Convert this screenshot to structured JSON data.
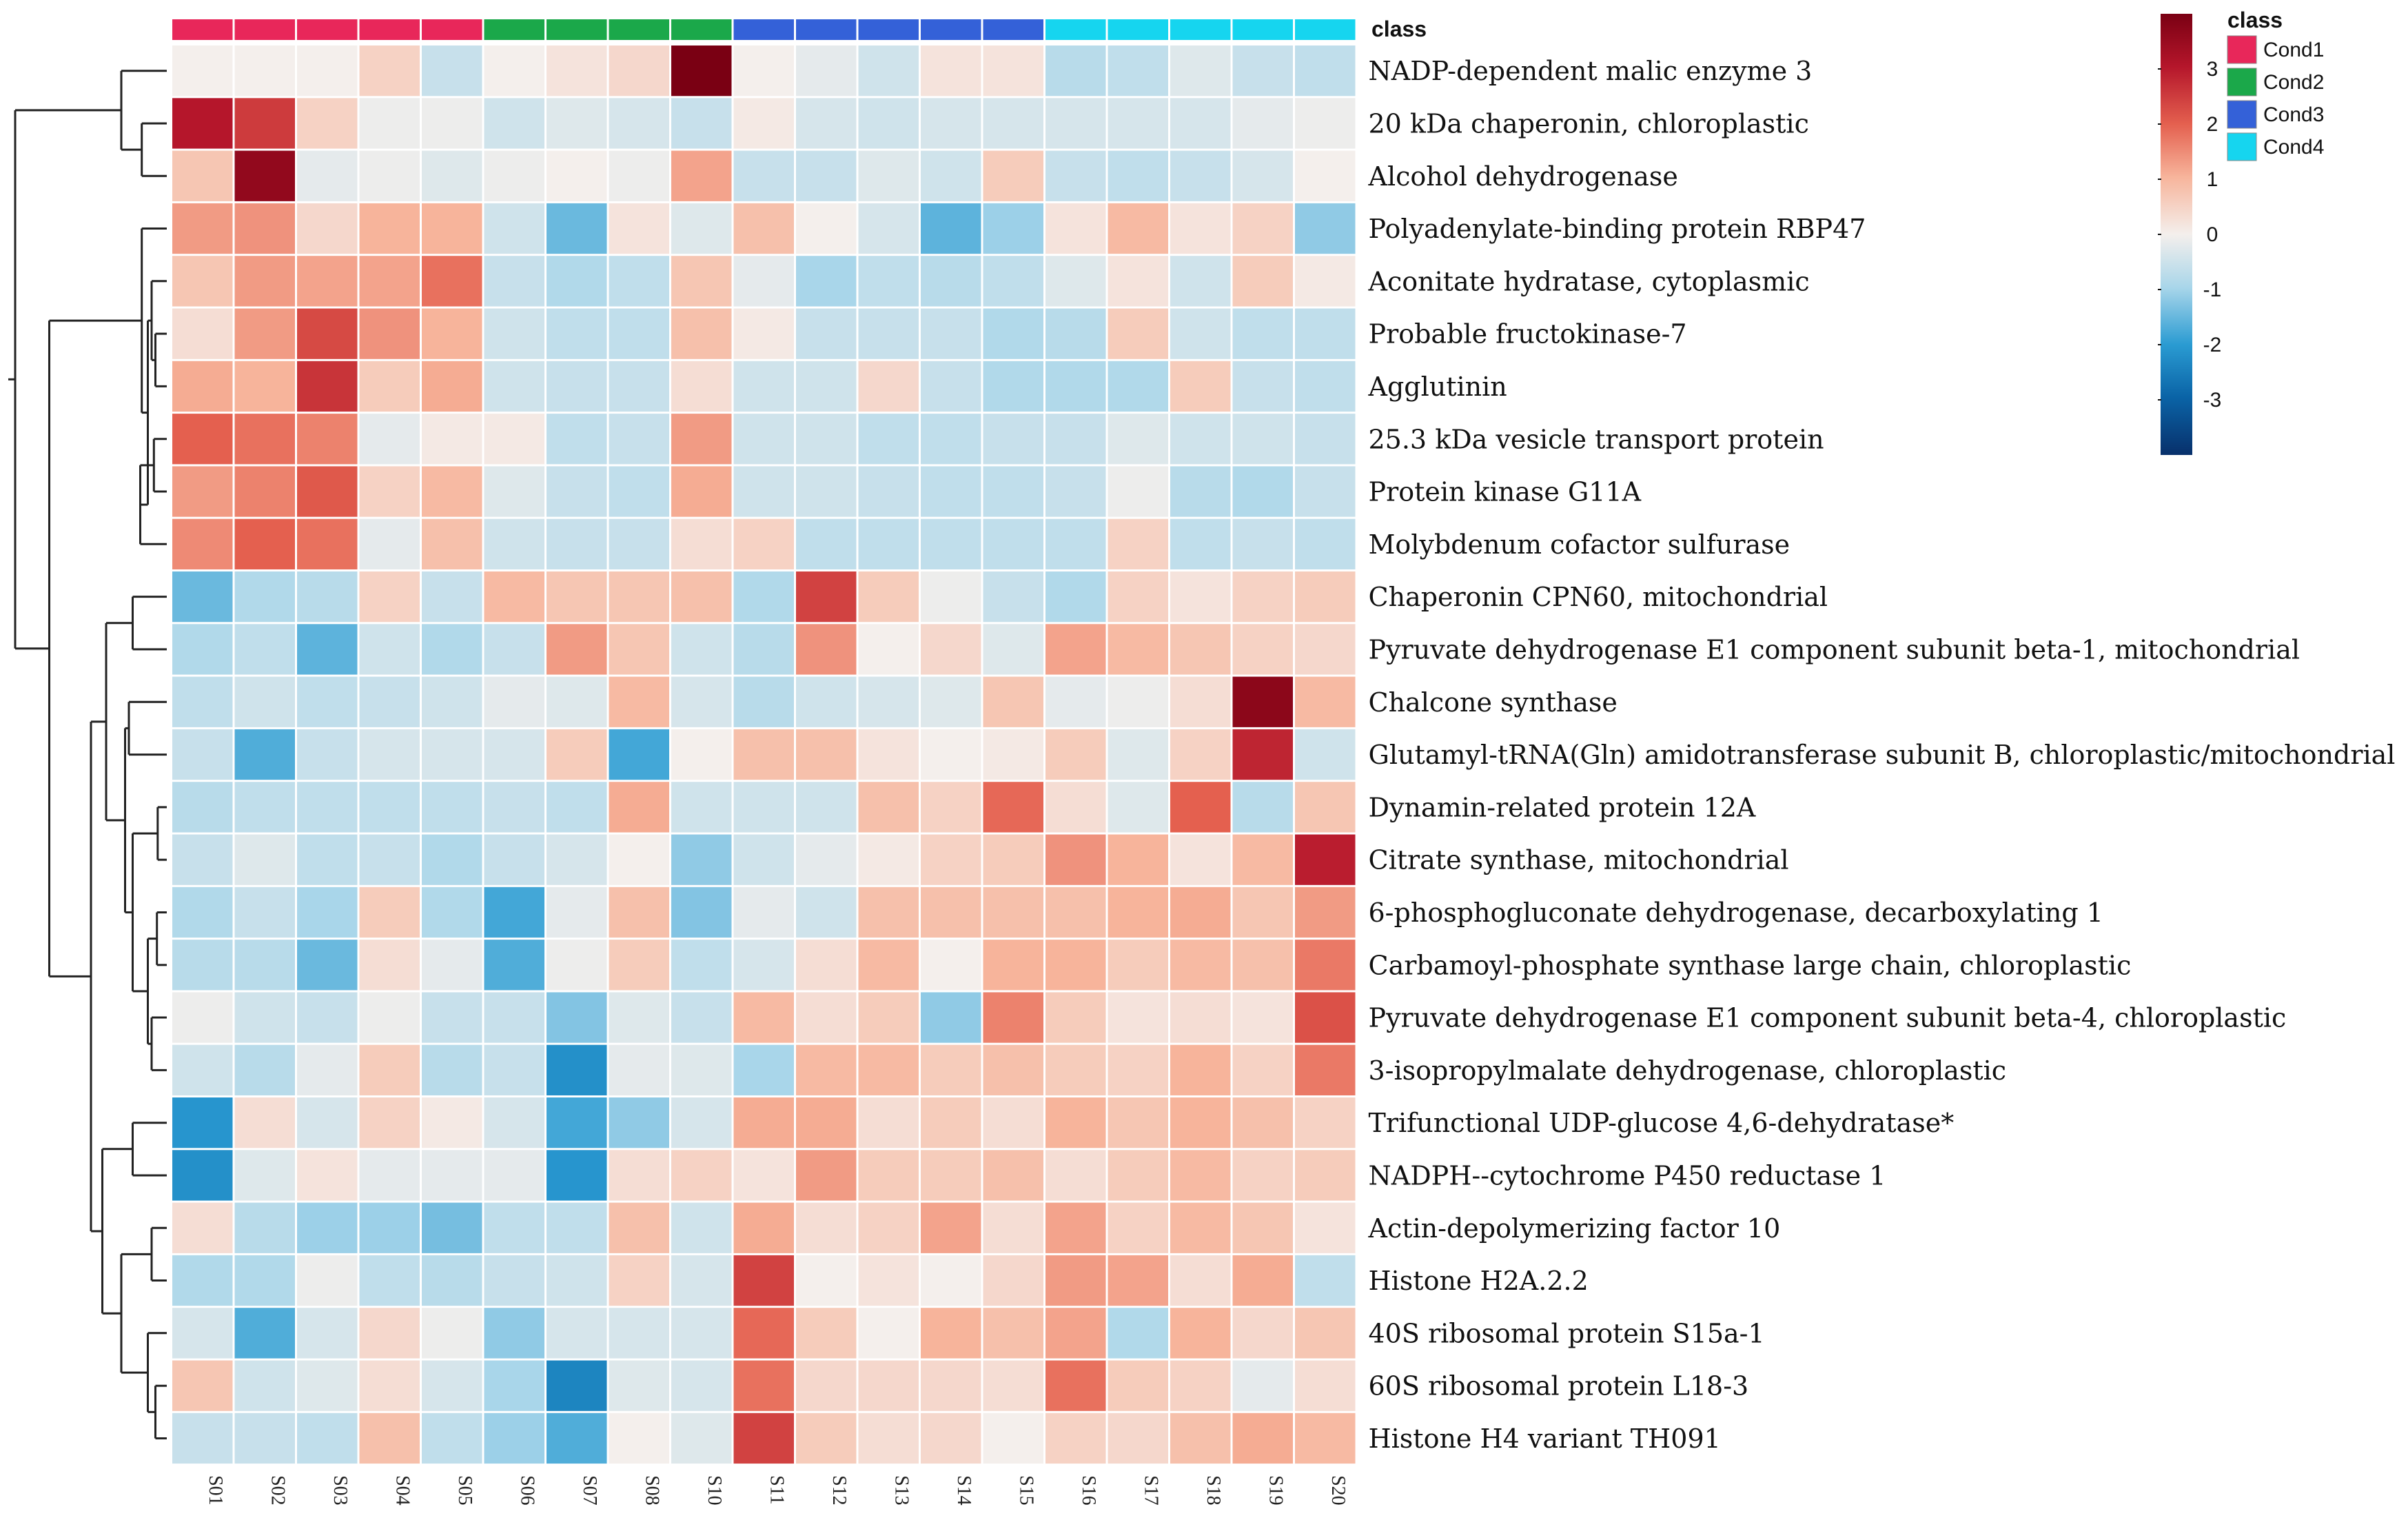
{
  "chart_data": {
    "type": "heatmap",
    "annotation_title": "class",
    "legend_title": "class",
    "color_scale": {
      "min": -4,
      "max": 4,
      "ticks": [
        3,
        2,
        1,
        0,
        -1,
        -2,
        -3
      ],
      "low_color": "#08306b",
      "mid_color": "#f4efec",
      "high_color": "#7a0013"
    },
    "classes": [
      {
        "name": "Cond1",
        "color": "#e8275a"
      },
      {
        "name": "Cond2",
        "color": "#1ba84a"
      },
      {
        "name": "Cond3",
        "color": "#3461d8"
      },
      {
        "name": "Cond4",
        "color": "#16d5ef"
      }
    ],
    "samples": [
      "S01",
      "S02",
      "S03",
      "S04",
      "S05",
      "S06",
      "S07",
      "S08",
      "S10",
      "S11",
      "S12",
      "S13",
      "S14",
      "S15",
      "S16",
      "S17",
      "S18",
      "S19",
      "S20"
    ],
    "sample_class": [
      0,
      0,
      0,
      0,
      0,
      1,
      1,
      1,
      1,
      2,
      2,
      2,
      2,
      2,
      3,
      3,
      3,
      3,
      3
    ],
    "rows": [
      "NADP-dependent malic enzyme 3",
      "20 kDa chaperonin, chloroplastic",
      "Alcohol dehydrogenase",
      "Polyadenylate-binding protein RBP47",
      "Aconitate hydratase, cytoplasmic",
      "Probable fructokinase-7",
      "Agglutinin",
      "25.3 kDa vesicle transport protein",
      "Protein kinase G11A",
      "Molybdenum cofactor sulfurase",
      "Chaperonin CPN60, mitochondrial",
      "Pyruvate dehydrogenase E1 component subunit beta-1, mitochondrial",
      "Chalcone synthase",
      "Glutamyl-tRNA(Gln) amidotransferase subunit B, chloroplastic/mitochondrial",
      "Dynamin-related protein 12A",
      "Citrate synthase, mitochondrial",
      "6-phosphogluconate dehydrogenase, decarboxylating 1",
      "Carbamoyl-phosphate synthase large chain, chloroplastic",
      "Pyruvate dehydrogenase E1 component subunit beta-4, chloroplastic",
      "3-isopropylmalate dehydrogenase, chloroplastic",
      "Trifunctional UDP-glucose 4,6-dehydratase*",
      "NADPH--cytochrome  P450 reductase 1",
      "Actin-depolymerizing factor 10",
      "Histone H2A.2.2",
      "40S ribosomal protein S15a-1",
      "60S ribosomal protein L18-3",
      "Histone H4 variant TH091"
    ],
    "values": [
      [
        0,
        0,
        0,
        0.5,
        -0.6,
        0,
        0.2,
        0.4,
        4,
        0,
        -0.2,
        -0.5,
        0.2,
        0.2,
        -0.8,
        -0.7,
        -0.3,
        -0.6,
        -0.7
      ],
      [
        3,
        2.5,
        0.5,
        -0.1,
        -0.1,
        -0.5,
        -0.3,
        -0.4,
        -0.6,
        0.1,
        -0.4,
        -0.5,
        -0.4,
        -0.4,
        -0.4,
        -0.4,
        -0.4,
        -0.2,
        -0.1
      ],
      [
        0.7,
        3.6,
        -0.2,
        -0.1,
        -0.3,
        -0.1,
        0,
        -0.1,
        1.2,
        -0.6,
        -0.6,
        -0.3,
        -0.5,
        0.6,
        -0.6,
        -0.7,
        -0.6,
        -0.4,
        0
      ],
      [
        1.3,
        1.4,
        0.4,
        1,
        1,
        -0.5,
        -1.5,
        0.2,
        -0.3,
        0.8,
        0,
        -0.4,
        -1.6,
        -1.1,
        0.2,
        0.9,
        0.2,
        0.5,
        -1.2
      ],
      [
        0.7,
        1.3,
        1.2,
        1.2,
        1.8,
        -0.6,
        -0.9,
        -0.7,
        0.7,
        -0.2,
        -1,
        -0.7,
        -0.8,
        -0.7,
        -0.3,
        0.2,
        -0.5,
        0.6,
        0.1
      ],
      [
        0.3,
        1.3,
        2.3,
        1.4,
        1,
        -0.5,
        -0.7,
        -0.7,
        0.8,
        0.1,
        -0.6,
        -0.6,
        -0.6,
        -0.9,
        -0.8,
        0.6,
        -0.5,
        -0.7,
        -0.7
      ],
      [
        1.1,
        1,
        2.6,
        0.6,
        1.1,
        -0.5,
        -0.6,
        -0.6,
        0.3,
        -0.5,
        -0.5,
        0.4,
        -0.6,
        -0.9,
        -0.9,
        -0.9,
        0.6,
        -0.6,
        -0.7
      ],
      [
        2,
        1.8,
        1.6,
        -0.2,
        0.1,
        0.1,
        -0.7,
        -0.6,
        1.3,
        -0.5,
        -0.5,
        -0.7,
        -0.7,
        -0.6,
        -0.6,
        -0.3,
        -0.5,
        -0.5,
        -0.6
      ],
      [
        1.3,
        1.6,
        2.1,
        0.5,
        0.9,
        -0.3,
        -0.6,
        -0.7,
        1.1,
        -0.5,
        -0.5,
        -0.6,
        -0.7,
        -0.7,
        -0.6,
        -0.1,
        -0.8,
        -0.9,
        -0.6
      ],
      [
        1.5,
        2,
        1.8,
        -0.2,
        0.8,
        -0.5,
        -0.6,
        -0.6,
        0.3,
        0.5,
        -0.7,
        -0.7,
        -0.7,
        -0.7,
        -0.7,
        0.5,
        -0.7,
        -0.6,
        -0.7
      ],
      [
        -1.5,
        -0.9,
        -0.8,
        0.5,
        -0.6,
        0.9,
        0.7,
        0.7,
        0.8,
        -0.9,
        2.4,
        0.6,
        -0.1,
        -0.6,
        -0.9,
        0.5,
        0.2,
        0.5,
        0.6
      ],
      [
        -0.9,
        -0.7,
        -1.6,
        -0.5,
        -0.9,
        -0.6,
        1.3,
        0.7,
        -0.5,
        -0.8,
        1.4,
        0,
        0.4,
        -0.3,
        1.2,
        0.9,
        0.7,
        0.5,
        0.4
      ],
      [
        -0.7,
        -0.5,
        -0.7,
        -0.6,
        -0.5,
        -0.2,
        -0.3,
        0.9,
        -0.4,
        -0.8,
        -0.5,
        -0.4,
        -0.3,
        0.7,
        -0.2,
        -0.1,
        0.3,
        3.7,
        0.9
      ],
      [
        -0.6,
        -1.7,
        -0.6,
        -0.4,
        -0.4,
        -0.4,
        0.6,
        -1.8,
        0,
        0.8,
        0.8,
        0.2,
        0,
        0.1,
        0.6,
        -0.3,
        0.5,
        2.8,
        -0.5
      ],
      [
        -0.8,
        -0.7,
        -0.7,
        -0.7,
        -0.7,
        -0.6,
        -0.7,
        1.1,
        -0.5,
        -0.5,
        -0.5,
        0.8,
        0.5,
        1.9,
        0.3,
        -0.3,
        2,
        -0.8,
        0.7
      ],
      [
        -0.6,
        -0.3,
        -0.7,
        -0.6,
        -0.9,
        -0.6,
        -0.4,
        0,
        -1.2,
        -0.5,
        -0.2,
        0.1,
        0.5,
        0.6,
        1.4,
        1,
        0.2,
        0.9,
        2.9
      ],
      [
        -0.9,
        -0.6,
        -1,
        0.6,
        -0.9,
        -1.8,
        -0.2,
        0.8,
        -1.3,
        -0.2,
        -0.5,
        0.8,
        0.8,
        0.8,
        0.8,
        1,
        1.1,
        0.7,
        1.3
      ],
      [
        -0.8,
        -0.8,
        -1.5,
        0.3,
        -0.2,
        -1.7,
        -0.1,
        0.6,
        -0.7,
        -0.4,
        0.3,
        0.9,
        0,
        1,
        1,
        0.6,
        0.9,
        0.8,
        1.7
      ],
      [
        -0.1,
        -0.5,
        -0.6,
        -0.1,
        -0.6,
        -0.6,
        -1.3,
        -0.3,
        -0.6,
        0.9,
        0.3,
        0.6,
        -1.2,
        1.6,
        0.6,
        0.2,
        0.3,
        0.2,
        2.2
      ],
      [
        -0.5,
        -0.8,
        -0.2,
        0.6,
        -0.8,
        -0.6,
        -2.2,
        -0.2,
        -0.3,
        -1,
        0.9,
        0.9,
        0.6,
        0.8,
        0.6,
        0.5,
        1,
        0.5,
        1.7
      ],
      [
        -2.1,
        0.3,
        -0.4,
        0.5,
        0.1,
        -0.4,
        -1.8,
        -1.2,
        -0.4,
        1.1,
        1.1,
        0.3,
        0.6,
        0.3,
        1,
        0.7,
        1,
        0.8,
        0.5
      ],
      [
        -2.2,
        -0.3,
        0.2,
        -0.2,
        -0.2,
        -0.2,
        -2.1,
        0.3,
        0.5,
        0.2,
        1.3,
        0.6,
        0.6,
        0.8,
        0.3,
        0.6,
        0.9,
        0.5,
        0.6
      ],
      [
        0.3,
        -0.8,
        -1.1,
        -1.1,
        -1.4,
        -0.7,
        -0.7,
        0.8,
        -0.5,
        1.1,
        0.3,
        0.5,
        1.2,
        0.3,
        1.2,
        0.5,
        0.9,
        0.7,
        0.2
      ],
      [
        -0.9,
        -0.9,
        -0.1,
        -0.7,
        -0.8,
        -0.6,
        -0.5,
        0.5,
        -0.4,
        2.4,
        0,
        0.2,
        0,
        0.4,
        1.3,
        1.2,
        0.3,
        1.1,
        -0.7
      ],
      [
        -0.4,
        -1.7,
        -0.4,
        0.4,
        -0.1,
        -1.2,
        -0.4,
        -0.4,
        -0.4,
        1.9,
        0.6,
        0,
        1,
        0.8,
        1.2,
        -0.9,
        1,
        0.4,
        0.7
      ],
      [
        0.7,
        -0.5,
        -0.3,
        0.3,
        -0.4,
        -1,
        -2.4,
        -0.3,
        -0.4,
        1.8,
        0.4,
        0.4,
        0.4,
        0.3,
        1.8,
        0.6,
        0.5,
        -0.2,
        0.3
      ],
      [
        -0.6,
        -0.6,
        -0.7,
        0.8,
        -0.7,
        -1.1,
        -1.7,
        0,
        -0.3,
        2.4,
        0.6,
        0.3,
        0.4,
        0,
        0.5,
        0.4,
        0.8,
        1.1,
        0.9
      ]
    ]
  }
}
